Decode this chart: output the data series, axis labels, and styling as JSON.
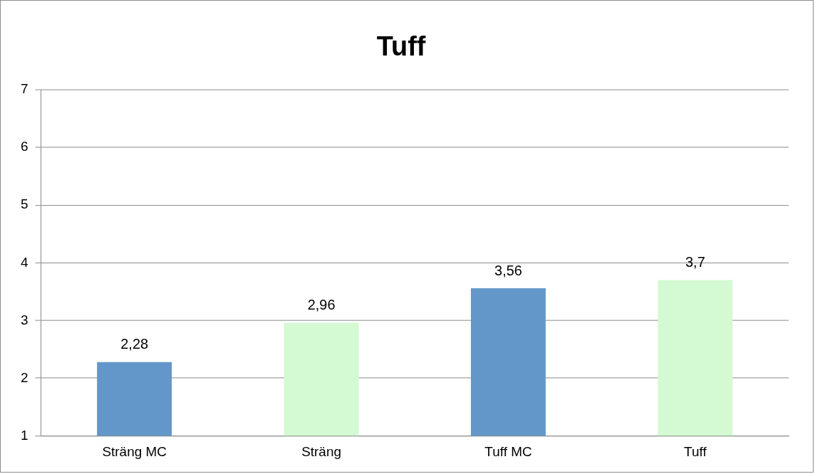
{
  "chart_data": {
    "type": "bar",
    "title": "Tuff",
    "categories": [
      "Sträng MC",
      "Sträng",
      "Tuff MC",
      "Tuff"
    ],
    "values": [
      2.28,
      2.96,
      3.56,
      3.7
    ],
    "colors": [
      "#6497c9",
      "#d3fad3",
      "#6497c9",
      "#d3fad3"
    ],
    "value_labels": [
      "2,28",
      "2,96",
      "3,56",
      "3,7"
    ],
    "ylim": [
      1,
      7
    ],
    "yticks": [
      1,
      2,
      3,
      4,
      5,
      6,
      7
    ],
    "grid": "y",
    "legend": false
  }
}
